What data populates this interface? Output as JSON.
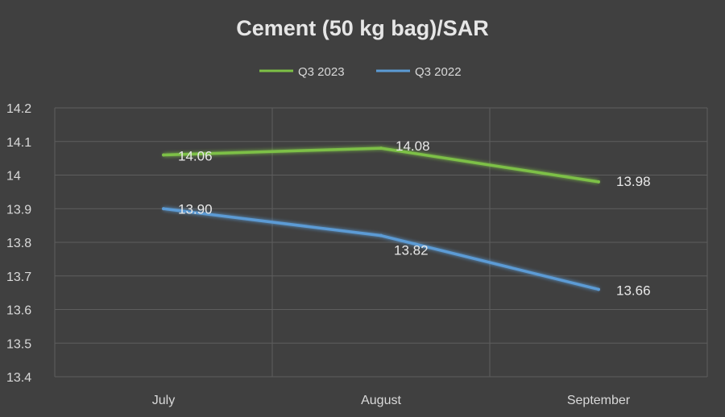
{
  "chart_data": {
    "type": "line",
    "title": "Cement (50 kg bag)/SAR",
    "categories": [
      "July",
      "August",
      "September"
    ],
    "series": [
      {
        "name": "Q3 2023",
        "color": "#7dc046",
        "values": [
          14.06,
          14.08,
          13.98
        ],
        "labels": [
          "14.06",
          "14.08",
          "13.98"
        ]
      },
      {
        "name": "Q3 2022",
        "color": "#5b9bd5",
        "values": [
          13.9,
          13.82,
          13.66
        ],
        "labels": [
          "13.90",
          "13.82",
          "13.66"
        ]
      }
    ],
    "ylim": [
      13.4,
      14.2
    ],
    "yticks": [
      13.4,
      13.5,
      13.6,
      13.7,
      13.8,
      13.9,
      14,
      14.1,
      14.2
    ],
    "ytick_labels": [
      "13.4",
      "13.5",
      "13.6",
      "13.7",
      "13.8",
      "13.9",
      "14",
      "14.1",
      "14.2"
    ],
    "grid": true,
    "legend_position": "top-center",
    "background_color": "#404040"
  }
}
